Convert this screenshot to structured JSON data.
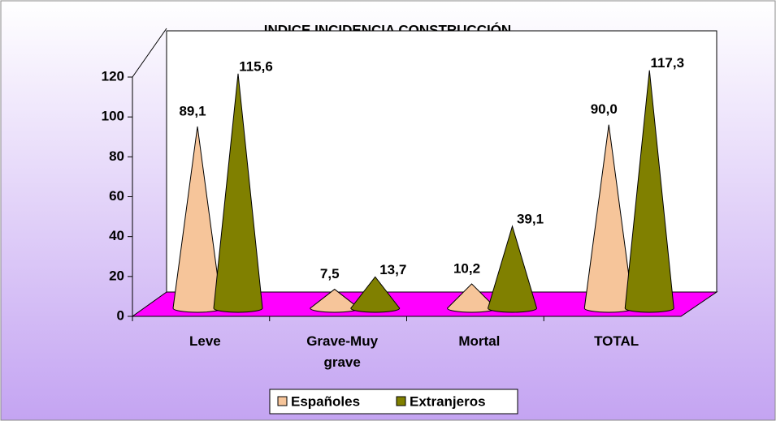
{
  "chart_data": {
    "type": "cone",
    "title": "INDICE INCIDENCIA CONSTRUCCIÓN",
    "categories": [
      "Leve",
      "Grave-Muy grave",
      "Mortal",
      "TOTAL"
    ],
    "series": [
      {
        "name": "Españoles",
        "color": "#f6c59a",
        "values": [
          89.1,
          7.5,
          10.2,
          90.0
        ],
        "value_labels": [
          "89,1",
          "7,5",
          "10,2",
          "90,0"
        ]
      },
      {
        "name": "Extranjeros",
        "color": "#808000",
        "values": [
          115.6,
          13.7,
          39.1,
          117.3
        ],
        "value_labels": [
          "115,6",
          "13,7",
          "39,1",
          "117,3"
        ]
      }
    ],
    "ylim": [
      0,
      120
    ],
    "yticks": [
      0,
      20,
      40,
      60,
      80,
      100,
      120
    ],
    "floor_color": "#ff00ff",
    "legend": "bottom"
  }
}
